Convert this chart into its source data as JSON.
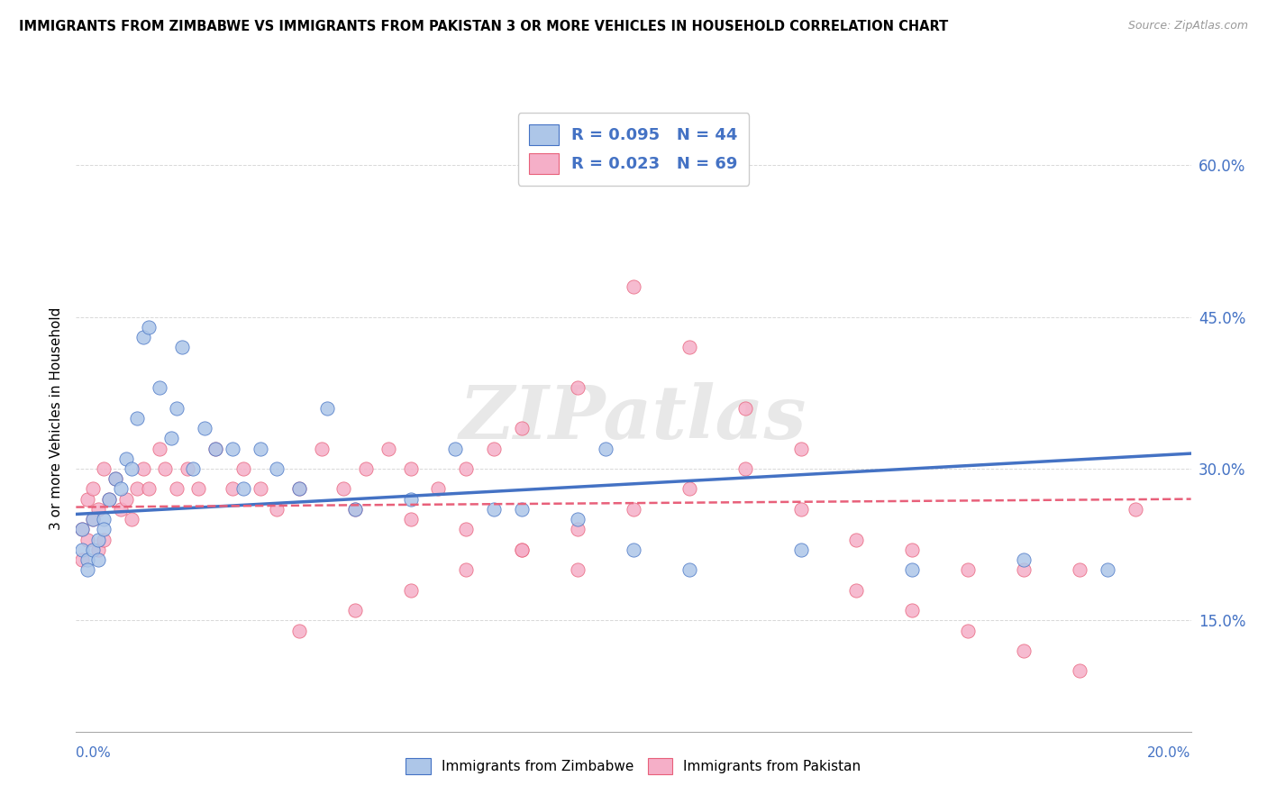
{
  "title": "IMMIGRANTS FROM ZIMBABWE VS IMMIGRANTS FROM PAKISTAN 3 OR MORE VEHICLES IN HOUSEHOLD CORRELATION CHART",
  "source": "Source: ZipAtlas.com",
  "ylabel": "3 or more Vehicles in Household",
  "xmin": 0.0,
  "xmax": 0.2,
  "ymin": 0.04,
  "ymax": 0.66,
  "yticks": [
    0.15,
    0.3,
    0.45,
    0.6
  ],
  "ytick_labels": [
    "15.0%",
    "30.0%",
    "45.0%",
    "60.0%"
  ],
  "xtick_left_label": "0.0%",
  "xtick_right_label": "20.0%",
  "legend_r1": "R = 0.095",
  "legend_n1": "N = 44",
  "legend_r2": "R = 0.023",
  "legend_n2": "N = 69",
  "series1_color": "#adc6e8",
  "series2_color": "#f5afc8",
  "line1_color": "#4472c4",
  "line2_color": "#e8607a",
  "watermark": "ZIPatlas",
  "background_color": "#ffffff",
  "grid_color": "#d8d8d8",
  "series1_name": "Immigrants from Zimbabwe",
  "series2_name": "Immigrants from Pakistan",
  "zimbabwe_x": [
    0.001,
    0.001,
    0.002,
    0.002,
    0.003,
    0.003,
    0.004,
    0.004,
    0.005,
    0.005,
    0.006,
    0.007,
    0.008,
    0.009,
    0.01,
    0.011,
    0.012,
    0.013,
    0.015,
    0.017,
    0.018,
    0.019,
    0.021,
    0.023,
    0.025,
    0.028,
    0.03,
    0.033,
    0.036,
    0.04,
    0.045,
    0.05,
    0.06,
    0.068,
    0.075,
    0.08,
    0.09,
    0.095,
    0.1,
    0.11,
    0.13,
    0.15,
    0.17,
    0.185
  ],
  "zimbabwe_y": [
    0.24,
    0.22,
    0.21,
    0.2,
    0.25,
    0.22,
    0.23,
    0.21,
    0.25,
    0.24,
    0.27,
    0.29,
    0.28,
    0.31,
    0.3,
    0.35,
    0.43,
    0.44,
    0.38,
    0.33,
    0.36,
    0.42,
    0.3,
    0.34,
    0.32,
    0.32,
    0.28,
    0.32,
    0.3,
    0.28,
    0.36,
    0.26,
    0.27,
    0.32,
    0.26,
    0.26,
    0.25,
    0.32,
    0.22,
    0.2,
    0.22,
    0.2,
    0.21,
    0.2
  ],
  "pakistan_x": [
    0.001,
    0.001,
    0.002,
    0.002,
    0.003,
    0.003,
    0.004,
    0.004,
    0.005,
    0.005,
    0.006,
    0.007,
    0.008,
    0.009,
    0.01,
    0.011,
    0.012,
    0.013,
    0.015,
    0.016,
    0.018,
    0.02,
    0.022,
    0.025,
    0.028,
    0.03,
    0.033,
    0.036,
    0.04,
    0.044,
    0.048,
    0.052,
    0.056,
    0.06,
    0.065,
    0.07,
    0.075,
    0.08,
    0.09,
    0.1,
    0.11,
    0.12,
    0.13,
    0.14,
    0.15,
    0.16,
    0.17,
    0.18,
    0.04,
    0.05,
    0.06,
    0.07,
    0.08,
    0.09,
    0.1,
    0.11,
    0.12,
    0.13,
    0.14,
    0.15,
    0.16,
    0.17,
    0.18,
    0.19,
    0.05,
    0.06,
    0.07,
    0.08,
    0.09
  ],
  "pakistan_y": [
    0.24,
    0.21,
    0.27,
    0.23,
    0.28,
    0.25,
    0.26,
    0.22,
    0.3,
    0.23,
    0.27,
    0.29,
    0.26,
    0.27,
    0.25,
    0.28,
    0.3,
    0.28,
    0.32,
    0.3,
    0.28,
    0.3,
    0.28,
    0.32,
    0.28,
    0.3,
    0.28,
    0.26,
    0.28,
    0.32,
    0.28,
    0.3,
    0.32,
    0.3,
    0.28,
    0.3,
    0.32,
    0.34,
    0.38,
    0.48,
    0.42,
    0.36,
    0.26,
    0.23,
    0.22,
    0.2,
    0.2,
    0.2,
    0.14,
    0.16,
    0.18,
    0.2,
    0.22,
    0.24,
    0.26,
    0.28,
    0.3,
    0.32,
    0.18,
    0.16,
    0.14,
    0.12,
    0.1,
    0.26,
    0.26,
    0.25,
    0.24,
    0.22,
    0.2
  ],
  "trendline_blue_x0": 0.0,
  "trendline_blue_y0": 0.255,
  "trendline_blue_x1": 0.2,
  "trendline_blue_y1": 0.315,
  "trendline_pink_x0": 0.0,
  "trendline_pink_y0": 0.262,
  "trendline_pink_x1": 0.2,
  "trendline_pink_y1": 0.27
}
